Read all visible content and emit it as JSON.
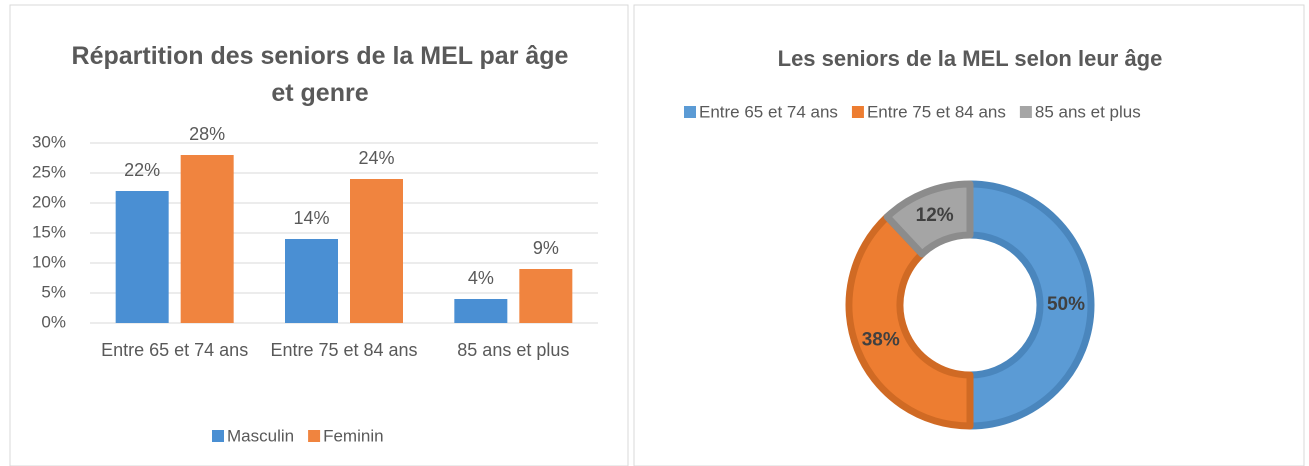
{
  "chart_data": [
    {
      "type": "bar",
      "title": "Répartition des seniors de la MEL par âge et genre",
      "categories": [
        "Entre 65 et 74 ans",
        "Entre 75 et 84 ans",
        "85 ans et plus"
      ],
      "series": [
        {
          "name": "Masculin",
          "color": "#4a8fd3",
          "values": [
            22,
            14,
            4
          ],
          "value_labels": [
            "22%",
            "14%",
            "4%"
          ]
        },
        {
          "name": "Feminin",
          "color": "#f0843f",
          "values": [
            28,
            24,
            9
          ],
          "value_labels": [
            "28%",
            "24%",
            "9%"
          ]
        }
      ],
      "ylim": [
        0,
        30
      ],
      "yticks": [
        {
          "value": 0,
          "label": "0%"
        },
        {
          "value": 5,
          "label": "5%"
        },
        {
          "value": 10,
          "label": "10%"
        },
        {
          "value": 15,
          "label": "15%"
        },
        {
          "value": 20,
          "label": "20%"
        },
        {
          "value": 25,
          "label": "25%"
        },
        {
          "value": 30,
          "label": "30%"
        }
      ],
      "grid": true,
      "legend": "bottom"
    },
    {
      "type": "pie",
      "title": "Les seniors de la MEL selon leur âge",
      "categories": [
        "Entre 65 et 74 ans",
        "Entre 75 et 84 ans",
        "85 ans et plus"
      ],
      "values": [
        50,
        38,
        12
      ],
      "value_labels": [
        "50%",
        "38%",
        "12%"
      ],
      "colors": [
        "#5b9bd5",
        "#ed7d31",
        "#a5a5a5"
      ],
      "hole": true,
      "legend": "top"
    }
  ]
}
